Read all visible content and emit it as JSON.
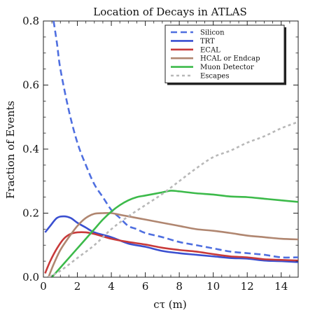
{
  "chart_data": {
    "type": "line",
    "title": "Location of Decays in ATLAS",
    "xlabel": "cτ (m)",
    "ylabel": "Fraction of Events",
    "xlim": [
      0,
      15
    ],
    "ylim": [
      0,
      0.8
    ],
    "xticks": [
      0,
      2,
      4,
      6,
      8,
      10,
      12,
      14
    ],
    "yticks": [
      0.0,
      0.2,
      0.4,
      0.6,
      0.8
    ],
    "xtick_labels": [
      "0",
      "2",
      "4",
      "6",
      "8",
      "10",
      "12",
      "14"
    ],
    "ytick_labels": [
      "0.0",
      "0.2",
      "0.4",
      "0.6",
      "0.8"
    ],
    "grid": false,
    "legend_position": "top-right",
    "series": [
      {
        "name": "Silicon",
        "color": "#4f6fe0",
        "dash": "dashed",
        "points": [
          [
            0.6,
            0.8
          ],
          [
            0.8,
            0.73
          ],
          [
            1.0,
            0.65
          ],
          [
            1.5,
            0.52
          ],
          [
            2,
            0.42
          ],
          [
            2.5,
            0.35
          ],
          [
            3,
            0.29
          ],
          [
            3.5,
            0.25
          ],
          [
            4,
            0.21
          ],
          [
            4.5,
            0.185
          ],
          [
            5,
            0.16
          ],
          [
            5.5,
            0.15
          ],
          [
            6,
            0.138
          ],
          [
            7,
            0.125
          ],
          [
            8,
            0.11
          ],
          [
            9,
            0.1
          ],
          [
            10,
            0.09
          ],
          [
            11,
            0.08
          ],
          [
            12,
            0.075
          ],
          [
            13,
            0.07
          ],
          [
            14,
            0.062
          ],
          [
            15,
            0.062
          ]
        ]
      },
      {
        "name": "TRT",
        "color": "#3a4fd0",
        "dash": "solid",
        "points": [
          [
            0.1,
            0.14
          ],
          [
            0.4,
            0.16
          ],
          [
            0.8,
            0.185
          ],
          [
            1.2,
            0.19
          ],
          [
            1.6,
            0.185
          ],
          [
            2,
            0.17
          ],
          [
            2.5,
            0.155
          ],
          [
            3,
            0.14
          ],
          [
            4,
            0.125
          ],
          [
            5,
            0.105
          ],
          [
            6,
            0.095
          ],
          [
            7,
            0.082
          ],
          [
            8,
            0.075
          ],
          [
            9,
            0.07
          ],
          [
            10,
            0.065
          ],
          [
            11,
            0.06
          ],
          [
            12,
            0.058
          ],
          [
            13,
            0.052
          ],
          [
            14,
            0.05
          ],
          [
            15,
            0.047
          ]
        ]
      },
      {
        "name": "ECAL",
        "color": "#c83a3a",
        "dash": "solid",
        "points": [
          [
            0.1,
            0.012
          ],
          [
            0.4,
            0.05
          ],
          [
            0.8,
            0.09
          ],
          [
            1.2,
            0.12
          ],
          [
            1.6,
            0.135
          ],
          [
            2,
            0.14
          ],
          [
            2.5,
            0.14
          ],
          [
            3,
            0.135
          ],
          [
            4,
            0.12
          ],
          [
            5,
            0.11
          ],
          [
            6,
            0.102
          ],
          [
            7,
            0.092
          ],
          [
            8,
            0.085
          ],
          [
            9,
            0.08
          ],
          [
            10,
            0.072
          ],
          [
            11,
            0.065
          ],
          [
            12,
            0.062
          ],
          [
            13,
            0.056
          ],
          [
            14,
            0.054
          ],
          [
            15,
            0.052
          ]
        ]
      },
      {
        "name": "HCAL or Endcap",
        "color": "#b08670",
        "dash": "solid",
        "points": [
          [
            0.3,
            0.0
          ],
          [
            0.6,
            0.04
          ],
          [
            1,
            0.085
          ],
          [
            1.5,
            0.125
          ],
          [
            2,
            0.16
          ],
          [
            2.5,
            0.185
          ],
          [
            3,
            0.198
          ],
          [
            3.5,
            0.2
          ],
          [
            4,
            0.2
          ],
          [
            4.5,
            0.195
          ],
          [
            5,
            0.19
          ],
          [
            6,
            0.18
          ],
          [
            7,
            0.17
          ],
          [
            8,
            0.16
          ],
          [
            9,
            0.15
          ],
          [
            10,
            0.145
          ],
          [
            11,
            0.138
          ],
          [
            12,
            0.13
          ],
          [
            13,
            0.125
          ],
          [
            14,
            0.12
          ],
          [
            15,
            0.118
          ]
        ]
      },
      {
        "name": "Muon Detector",
        "color": "#3cba4a",
        "dash": "solid",
        "points": [
          [
            0.5,
            0.0
          ],
          [
            1,
            0.03
          ],
          [
            1.5,
            0.06
          ],
          [
            2,
            0.09
          ],
          [
            2.5,
            0.12
          ],
          [
            3,
            0.15
          ],
          [
            3.5,
            0.18
          ],
          [
            4,
            0.205
          ],
          [
            4.5,
            0.225
          ],
          [
            5,
            0.24
          ],
          [
            5.5,
            0.25
          ],
          [
            6,
            0.255
          ],
          [
            7,
            0.265
          ],
          [
            7.5,
            0.27
          ],
          [
            8,
            0.268
          ],
          [
            9,
            0.262
          ],
          [
            10,
            0.258
          ],
          [
            11,
            0.252
          ],
          [
            12,
            0.25
          ],
          [
            13,
            0.245
          ],
          [
            14,
            0.24
          ],
          [
            15,
            0.235
          ]
        ]
      },
      {
        "name": "Escapes",
        "color": "#b8b8b8",
        "dash": "dotted",
        "points": [
          [
            0.3,
            0.0
          ],
          [
            1,
            0.02
          ],
          [
            2,
            0.06
          ],
          [
            3,
            0.1
          ],
          [
            4,
            0.15
          ],
          [
            5,
            0.19
          ],
          [
            6,
            0.225
          ],
          [
            7,
            0.26
          ],
          [
            8,
            0.3
          ],
          [
            9,
            0.34
          ],
          [
            10,
            0.375
          ],
          [
            11,
            0.395
          ],
          [
            12,
            0.42
          ],
          [
            13,
            0.44
          ],
          [
            14,
            0.465
          ],
          [
            15,
            0.485
          ]
        ]
      }
    ]
  }
}
